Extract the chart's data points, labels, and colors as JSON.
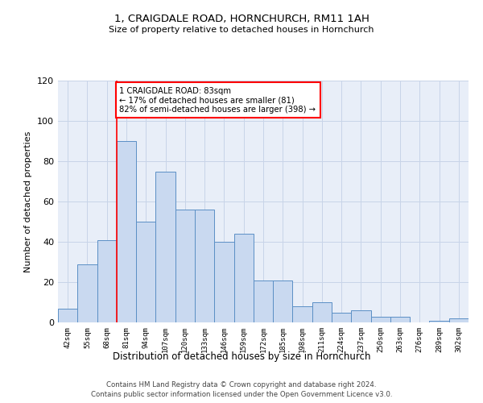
{
  "title": "1, CRAIGDALE ROAD, HORNCHURCH, RM11 1AH",
  "subtitle": "Size of property relative to detached houses in Hornchurch",
  "xlabel": "Distribution of detached houses by size in Hornchurch",
  "ylabel": "Number of detached properties",
  "categories": [
    "42sqm",
    "55sqm",
    "68sqm",
    "81sqm",
    "94sqm",
    "107sqm",
    "120sqm",
    "133sqm",
    "146sqm",
    "159sqm",
    "172sqm",
    "185sqm",
    "198sqm",
    "211sqm",
    "224sqm",
    "237sqm",
    "250sqm",
    "263sqm",
    "276sqm",
    "289sqm",
    "302sqm"
  ],
  "values": [
    7,
    29,
    41,
    90,
    50,
    75,
    56,
    56,
    40,
    44,
    21,
    21,
    8,
    10,
    5,
    6,
    3,
    3,
    0,
    1,
    2
  ],
  "bar_color": "#c9d9f0",
  "bar_edge_color": "#5b8fc5",
  "grid_color": "#c8d4e8",
  "background_color": "#e8eef8",
  "annotation_box_color": "white",
  "annotation_border_color": "red",
  "vline_color": "red",
  "vline_bar_index": 3,
  "annotation_text_line1": "1 CRAIGDALE ROAD: 83sqm",
  "annotation_text_line2": "← 17% of detached houses are smaller (81)",
  "annotation_text_line3": "82% of semi-detached houses are larger (398) →",
  "ylim": [
    0,
    120
  ],
  "yticks": [
    0,
    20,
    40,
    60,
    80,
    100,
    120
  ],
  "footer1": "Contains HM Land Registry data © Crown copyright and database right 2024.",
  "footer2": "Contains public sector information licensed under the Open Government Licence v3.0."
}
